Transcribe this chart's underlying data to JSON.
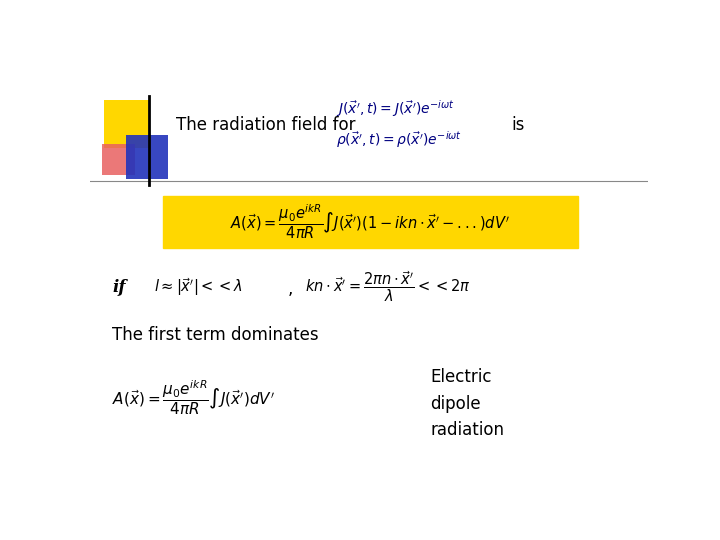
{
  "background_color": "#ffffff",
  "title_text": "The radiation field for",
  "title_is": "is",
  "eq1a": "$J(\\vec{x}^{\\prime},t) = J(\\vec{x}^{\\prime})e^{-i\\omega t}$",
  "eq1b": "$\\rho(\\vec{x}^{\\prime},t) = \\rho(\\vec{x}^{\\prime})e^{-i\\omega t}$",
  "box_color": "#FFD700",
  "box_eq": "$A(\\vec{x}) = \\dfrac{\\mu_0 e^{ikR}}{4\\pi R} \\int J(\\vec{x}^{\\prime})(1 - ikn\\cdot\\vec{x}^{\\prime} - ...)dV^{\\prime}$",
  "if_label": "if",
  "if_eq1": "$l \\approx |\\vec{x}^{\\prime}| << \\lambda$",
  "if_comma": ",",
  "if_eq2": "$kn\\cdot\\vec{x}^{\\prime} = \\dfrac{2\\pi n\\cdot\\vec{x}^{\\prime}}{\\lambda} << 2\\pi$",
  "first_term_text": "The first term dominates",
  "final_eq": "$A(\\vec{x}) = \\dfrac{\\mu_0 e^{ikR}}{4\\pi R} \\int J(\\vec{x}^{\\prime})dV^{\\prime}$",
  "electric_label": "Electric\ndipole\nradiation",
  "text_color": "#000080",
  "eq_color": "#000080",
  "title_color": "#000000"
}
